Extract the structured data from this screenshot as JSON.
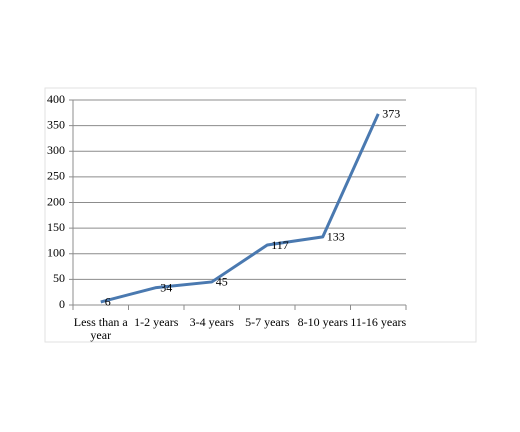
{
  "chart_data": {
    "type": "line",
    "categories": [
      "Less than a year",
      "1-2 years",
      "3-4 years",
      "5-7 years",
      "8-10 years",
      "11-16 years"
    ],
    "values": [
      6,
      34,
      45,
      117,
      133,
      373
    ],
    "color": "#4a79b0",
    "ylim": [
      0,
      400
    ],
    "yticks": [
      0,
      50,
      100,
      150,
      200,
      250,
      300,
      350,
      400
    ],
    "grid": true
  }
}
